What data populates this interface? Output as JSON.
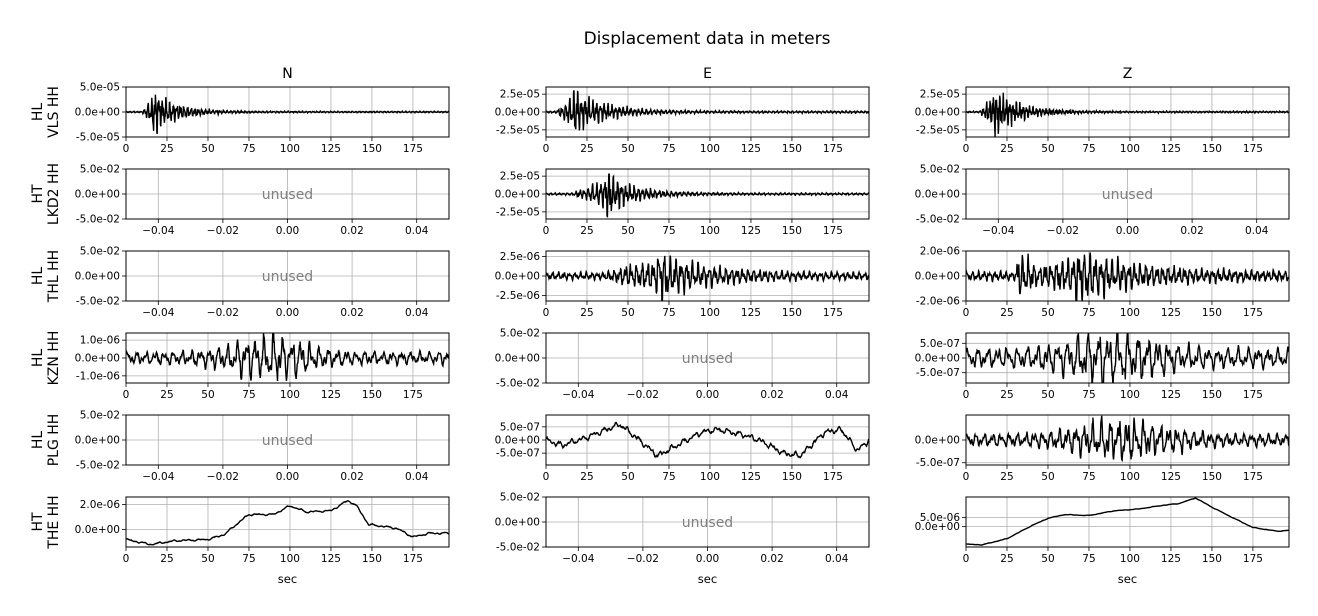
{
  "figure": {
    "title": "Displacement data in meters",
    "xlabel": "sec"
  },
  "chart_data": {
    "type": "line",
    "columns": [
      "N",
      "E",
      "Z"
    ],
    "rows": [
      {
        "network": "HL",
        "station": "VLS HH"
      },
      {
        "network": "HT",
        "station": "LKD2 HH"
      },
      {
        "network": "HL",
        "station": "THL HH"
      },
      {
        "network": "HL",
        "station": "KZN HH"
      },
      {
        "network": "HL",
        "station": "PLG HH"
      },
      {
        "network": "HT",
        "station": "THE HH"
      }
    ],
    "unused_label": "unused",
    "line_color": "#000000",
    "unused_color": "#808080",
    "grid_color": "#b0b0b0",
    "grid": true,
    "panels": [
      {
        "id": "vls-n",
        "row": 0,
        "col": 0,
        "used": true,
        "xlim": [
          0,
          197
        ],
        "xticks": [
          0,
          25,
          50,
          75,
          100,
          125,
          150,
          175
        ],
        "xtick_labels": [
          "0",
          "25",
          "50",
          "75",
          "100",
          "125",
          "150",
          "175"
        ],
        "ylim": [
          -5e-05,
          5e-05
        ],
        "yticks": [
          5e-05,
          0,
          -5e-05
        ],
        "ytick_labels": [
          "5.0e-05",
          "0.0e+00",
          "-5.0e-05"
        ],
        "signal": {
          "kind": "quake",
          "onset": 10,
          "peak": 16,
          "peak_amp": 4.8e-05,
          "decay": 14,
          "noise": 8e-07,
          "freq": 1.4,
          "seed": 11
        }
      },
      {
        "id": "vls-e",
        "row": 0,
        "col": 1,
        "used": true,
        "xlim": [
          0,
          197
        ],
        "xticks": [
          0,
          25,
          50,
          75,
          100,
          125,
          150,
          175
        ],
        "xtick_labels": [
          "0",
          "25",
          "50",
          "75",
          "100",
          "125",
          "150",
          "175"
        ],
        "ylim": [
          -3.5e-05,
          3.5e-05
        ],
        "yticks": [
          2.5e-05,
          0,
          -2.5e-05
        ],
        "ytick_labels": [
          "2.5e-05",
          "0.0e+00",
          "-2.5e-05"
        ],
        "signal": {
          "kind": "quake",
          "onset": 6,
          "peak": 16,
          "peak_amp": 3.6e-05,
          "decay": 18,
          "noise": 8e-07,
          "freq": 1.3,
          "seed": 12
        }
      },
      {
        "id": "vls-z",
        "row": 0,
        "col": 2,
        "used": true,
        "xlim": [
          0,
          197
        ],
        "xticks": [
          0,
          25,
          50,
          75,
          100,
          125,
          150,
          175
        ],
        "xtick_labels": [
          "0",
          "25",
          "50",
          "75",
          "100",
          "125",
          "150",
          "175"
        ],
        "ylim": [
          -3.5e-05,
          3.5e-05
        ],
        "yticks": [
          2.5e-05,
          0,
          -2.5e-05
        ],
        "ytick_labels": [
          "2.5e-05",
          "0.0e+00",
          "-2.5e-05"
        ],
        "signal": {
          "kind": "quake",
          "onset": 8,
          "peak": 16,
          "peak_amp": 3.6e-05,
          "decay": 15,
          "noise": 6e-07,
          "freq": 1.5,
          "seed": 13
        }
      },
      {
        "id": "lkd2-n",
        "row": 1,
        "col": 0,
        "used": false,
        "xlim": [
          -0.05,
          0.05
        ],
        "xticks": [
          -0.04,
          -0.02,
          0,
          0.02,
          0.04
        ],
        "xtick_labels": [
          "−0.04",
          "−0.02",
          "0.00",
          "0.02",
          "0.04"
        ],
        "ylim": [
          -0.05,
          0.05
        ],
        "yticks": [
          0.05,
          0,
          -0.05
        ],
        "ytick_labels": [
          "5.0e-02",
          "0.0e+00",
          "-5.0e-02"
        ]
      },
      {
        "id": "lkd2-e",
        "row": 1,
        "col": 1,
        "used": true,
        "xlim": [
          0,
          197
        ],
        "xticks": [
          0,
          25,
          50,
          75,
          100,
          125,
          150,
          175
        ],
        "xtick_labels": [
          "0",
          "25",
          "50",
          "75",
          "100",
          "125",
          "150",
          "175"
        ],
        "ylim": [
          -3.5e-05,
          3.5e-05
        ],
        "yticks": [
          2.5e-05,
          0,
          -2.5e-05
        ],
        "ytick_labels": [
          "2.5e-05",
          "0.0e+00",
          "-2.5e-05"
        ],
        "signal": {
          "kind": "quake",
          "onset": 16,
          "peak": 36,
          "peak_amp": 3.4e-05,
          "decay": 16,
          "noise": 8e-07,
          "freq": 1.2,
          "seed": 14
        }
      },
      {
        "id": "lkd2-z",
        "row": 1,
        "col": 2,
        "used": false,
        "xlim": [
          -0.05,
          0.05
        ],
        "xticks": [
          -0.04,
          -0.02,
          0,
          0.02,
          0.04
        ],
        "xtick_labels": [
          "−0.04",
          "−0.02",
          "0.00",
          "0.02",
          "0.04"
        ],
        "ylim": [
          -0.05,
          0.05
        ],
        "yticks": [
          0.05,
          0,
          -0.05
        ],
        "ytick_labels": [
          "5.0e-02",
          "0.0e+00",
          "-5.0e-02"
        ]
      },
      {
        "id": "thl-n",
        "row": 2,
        "col": 0,
        "used": false,
        "xlim": [
          -0.05,
          0.05
        ],
        "xticks": [
          -0.04,
          -0.02,
          0,
          0.02,
          0.04
        ],
        "xtick_labels": [
          "−0.04",
          "−0.02",
          "0.00",
          "0.02",
          "0.04"
        ],
        "ylim": [
          -0.05,
          0.05
        ],
        "yticks": [
          0.05,
          0,
          -0.05
        ],
        "ytick_labels": [
          "5.0e-02",
          "0.0e+00",
          "-5.0e-02"
        ]
      },
      {
        "id": "thl-e",
        "row": 2,
        "col": 1,
        "used": true,
        "xlim": [
          0,
          197
        ],
        "xticks": [
          0,
          25,
          50,
          75,
          100,
          125,
          150,
          175
        ],
        "xtick_labels": [
          "0",
          "25",
          "50",
          "75",
          "100",
          "125",
          "150",
          "175"
        ],
        "ylim": [
          -3.2e-06,
          3.2e-06
        ],
        "yticks": [
          2.5e-06,
          0,
          -2.5e-06
        ],
        "ytick_labels": [
          "2.5e-06",
          "0.0e+00",
          "-2.5e-06"
        ],
        "signal": {
          "kind": "quake",
          "onset": 35,
          "peak": 68,
          "peak_amp": 3.1e-06,
          "decay": 28,
          "noise": 2.5e-07,
          "freq": 0.9,
          "seed": 15,
          "pre_amp": 1.2e-06,
          "pre_peak": 52
        }
      },
      {
        "id": "thl-z",
        "row": 2,
        "col": 2,
        "used": true,
        "xlim": [
          0,
          197
        ],
        "xticks": [
          0,
          25,
          50,
          75,
          100,
          125,
          150,
          175
        ],
        "xtick_labels": [
          "0",
          "25",
          "50",
          "75",
          "100",
          "125",
          "150",
          "175"
        ],
        "ylim": [
          -2e-06,
          2e-06
        ],
        "yticks": [
          2e-06,
          0,
          -2e-06
        ],
        "ytick_labels": [
          "2.0e-06",
          "0.0e+00",
          "-2.0e-06"
        ],
        "signal": {
          "kind": "quake",
          "onset": 31,
          "peak": 66,
          "peak_amp": 2.1e-06,
          "decay": 35,
          "noise": 2e-07,
          "freq": 0.9,
          "seed": 16,
          "pre_amp": 1.6e-06,
          "pre_peak": 34
        }
      },
      {
        "id": "kzn-n",
        "row": 3,
        "col": 0,
        "used": true,
        "xlim": [
          0,
          197
        ],
        "xticks": [
          0,
          25,
          50,
          75,
          100,
          125,
          150,
          175
        ],
        "xtick_labels": [
          "0",
          "25",
          "50",
          "75",
          "100",
          "125",
          "150",
          "175"
        ],
        "ylim": [
          -1.4e-06,
          1.4e-06
        ],
        "yticks": [
          1e-06,
          0,
          -1e-06
        ],
        "ytick_labels": [
          "1.0e-06",
          "0.0e+00",
          "-1.0e-06"
        ],
        "signal": {
          "kind": "osc",
          "noise": 3.8e-07,
          "freq": 0.55,
          "burst_center": 88,
          "burst_width": 28,
          "burst_amp": 1.2e-06,
          "seed": 17
        }
      },
      {
        "id": "kzn-e",
        "row": 3,
        "col": 1,
        "used": false,
        "xlim": [
          -0.05,
          0.05
        ],
        "xticks": [
          -0.04,
          -0.02,
          0,
          0.02,
          0.04
        ],
        "xtick_labels": [
          "−0.04",
          "−0.02",
          "0.00",
          "0.02",
          "0.04"
        ],
        "ylim": [
          -0.05,
          0.05
        ],
        "yticks": [
          0.05,
          0,
          -0.05
        ],
        "ytick_labels": [
          "5.0e-02",
          "0.0e+00",
          "-5.0e-02"
        ]
      },
      {
        "id": "kzn-z",
        "row": 3,
        "col": 2,
        "used": true,
        "xlim": [
          0,
          197
        ],
        "xticks": [
          0,
          25,
          50,
          75,
          100,
          125,
          150,
          175
        ],
        "xtick_labels": [
          "0",
          "25",
          "50",
          "75",
          "100",
          "125",
          "150",
          "175"
        ],
        "ylim": [
          -8.5e-07,
          8.5e-07
        ],
        "yticks": [
          5e-07,
          0,
          -5e-07
        ],
        "ytick_labels": [
          "5.0e-07",
          "0.0e+00",
          "-5.0e-07"
        ],
        "signal": {
          "kind": "osc",
          "noise": 3.5e-07,
          "freq": 0.5,
          "burst_center": 90,
          "burst_width": 35,
          "burst_amp": 7e-07,
          "seed": 18
        }
      },
      {
        "id": "plg-n",
        "row": 4,
        "col": 0,
        "used": false,
        "xlim": [
          -0.05,
          0.05
        ],
        "xticks": [
          -0.04,
          -0.02,
          0,
          0.02,
          0.04
        ],
        "xtick_labels": [
          "−0.04",
          "−0.02",
          "0.00",
          "0.02",
          "0.04"
        ],
        "ylim": [
          -0.05,
          0.05
        ],
        "yticks": [
          0.05,
          0,
          -0.05
        ],
        "ytick_labels": [
          "5.0e-02",
          "0.0e+00",
          "-5.0e-02"
        ]
      },
      {
        "id": "plg-e",
        "row": 4,
        "col": 1,
        "used": true,
        "xlim": [
          0,
          197
        ],
        "xticks": [
          0,
          25,
          50,
          75,
          100,
          125,
          150,
          175
        ],
        "xtick_labels": [
          "0",
          "25",
          "50",
          "75",
          "100",
          "125",
          "150",
          "175"
        ],
        "ylim": [
          -9.5e-07,
          9.5e-07
        ],
        "yticks": [
          5e-07,
          0,
          -5e-07
        ],
        "ytick_labels": [
          "5.0e-07",
          "0.0e+00",
          "-5.0e-07"
        ],
        "signal": {
          "kind": "wander",
          "noise": 1.2e-07,
          "freq": 0.45,
          "seed": 19,
          "trend": [
            [
              0,
              0
            ],
            [
              10,
              -2e-07
            ],
            [
              25,
              1e-07
            ],
            [
              45,
              6e-07
            ],
            [
              55,
              1e-07
            ],
            [
              68,
              -6e-07
            ],
            [
              80,
              -2e-07
            ],
            [
              95,
              3e-07
            ],
            [
              105,
              4e-07
            ],
            [
              120,
              2e-07
            ],
            [
              130,
              0
            ],
            [
              145,
              -5e-07
            ],
            [
              155,
              -6e-07
            ],
            [
              170,
              3e-07
            ],
            [
              180,
              4e-07
            ],
            [
              190,
              -4e-07
            ],
            [
              197,
              0
            ]
          ]
        }
      },
      {
        "id": "plg-z",
        "row": 4,
        "col": 2,
        "used": true,
        "xlim": [
          0,
          197
        ],
        "xticks": [
          0,
          25,
          50,
          75,
          100,
          125,
          150,
          175
        ],
        "xtick_labels": [
          "0",
          "25",
          "50",
          "75",
          "100",
          "125",
          "150",
          "175"
        ],
        "ylim": [
          -5.5e-07,
          5.5e-07
        ],
        "yticks": [
          0,
          -5e-07
        ],
        "ytick_labels": [
          "0.0e+00",
          "-5.0e-07"
        ],
        "signal": {
          "kind": "osc",
          "noise": 1.5e-07,
          "freq": 0.6,
          "burst_center": 95,
          "burst_width": 35,
          "burst_amp": 4e-07,
          "seed": 20
        }
      },
      {
        "id": "the-n",
        "row": 5,
        "col": 0,
        "used": true,
        "xlim": [
          0,
          197
        ],
        "xticks": [
          0,
          25,
          50,
          75,
          100,
          125,
          150,
          175
        ],
        "xtick_labels": [
          "0",
          "25",
          "50",
          "75",
          "100",
          "125",
          "150",
          "175"
        ],
        "ylim": [
          -1.4e-06,
          2.6e-06
        ],
        "yticks": [
          2e-06,
          0
        ],
        "ytick_labels": [
          "2.0e-06",
          "0.0e+00"
        ],
        "signal": {
          "kind": "wander",
          "noise": 8e-08,
          "freq": 0.35,
          "seed": 21,
          "trend": [
            [
              0,
              -8e-07
            ],
            [
              15,
              -1.2e-06
            ],
            [
              30,
              -9e-07
            ],
            [
              50,
              -8e-07
            ],
            [
              60,
              -4e-07
            ],
            [
              70,
              7e-07
            ],
            [
              75,
              1.2e-06
            ],
            [
              90,
              1.2e-06
            ],
            [
              100,
              1.9e-06
            ],
            [
              110,
              1.4e-06
            ],
            [
              125,
              1.5e-06
            ],
            [
              135,
              2.3e-06
            ],
            [
              140,
              2e-06
            ],
            [
              148,
              4e-07
            ],
            [
              165,
              1e-07
            ],
            [
              175,
              -6e-07
            ],
            [
              185,
              -3e-07
            ],
            [
              197,
              -3e-07
            ]
          ]
        }
      },
      {
        "id": "the-e",
        "row": 5,
        "col": 1,
        "used": false,
        "xlim": [
          -0.05,
          0.05
        ],
        "xticks": [
          -0.04,
          -0.02,
          0,
          0.02,
          0.04
        ],
        "xtick_labels": [
          "−0.04",
          "−0.02",
          "0.00",
          "0.02",
          "0.04"
        ],
        "ylim": [
          -0.05,
          0.05
        ],
        "yticks": [
          0.05,
          0,
          -0.05
        ],
        "ytick_labels": [
          "5.0e-02",
          "0.0e+00",
          "-5.0e-02"
        ]
      },
      {
        "id": "the-z",
        "row": 5,
        "col": 2,
        "used": true,
        "xlim": [
          0,
          197
        ],
        "xticks": [
          0,
          25,
          50,
          75,
          100,
          125,
          150,
          175
        ],
        "xtick_labels": [
          "0",
          "25",
          "50",
          "75",
          "100",
          "125",
          "150",
          "175"
        ],
        "ylim": [
          -1.1e-05,
          1.6e-05
        ],
        "yticks": [
          5e-06,
          0
        ],
        "ytick_labels": [
          "5.0e-06",
          "0.0e+00"
        ],
        "signal": {
          "kind": "wander",
          "noise": 1.5e-07,
          "freq": 0.3,
          "seed": 22,
          "trend": [
            [
              0,
              -9.5e-06
            ],
            [
              10,
              -9.8e-06
            ],
            [
              25,
              -6.5e-06
            ],
            [
              40,
              5e-07
            ],
            [
              50,
              4.5e-06
            ],
            [
              60,
              6.5e-06
            ],
            [
              75,
              6e-06
            ],
            [
              90,
              8.5e-06
            ],
            [
              105,
              9.5e-06
            ],
            [
              120,
              1.15e-05
            ],
            [
              130,
              1.25e-05
            ],
            [
              140,
              1.55e-05
            ],
            [
              150,
              1.05e-05
            ],
            [
              160,
              6e-06
            ],
            [
              175,
              -5e-07
            ],
            [
              190,
              -2.5e-06
            ],
            [
              197,
              -2e-06
            ]
          ]
        }
      }
    ]
  }
}
